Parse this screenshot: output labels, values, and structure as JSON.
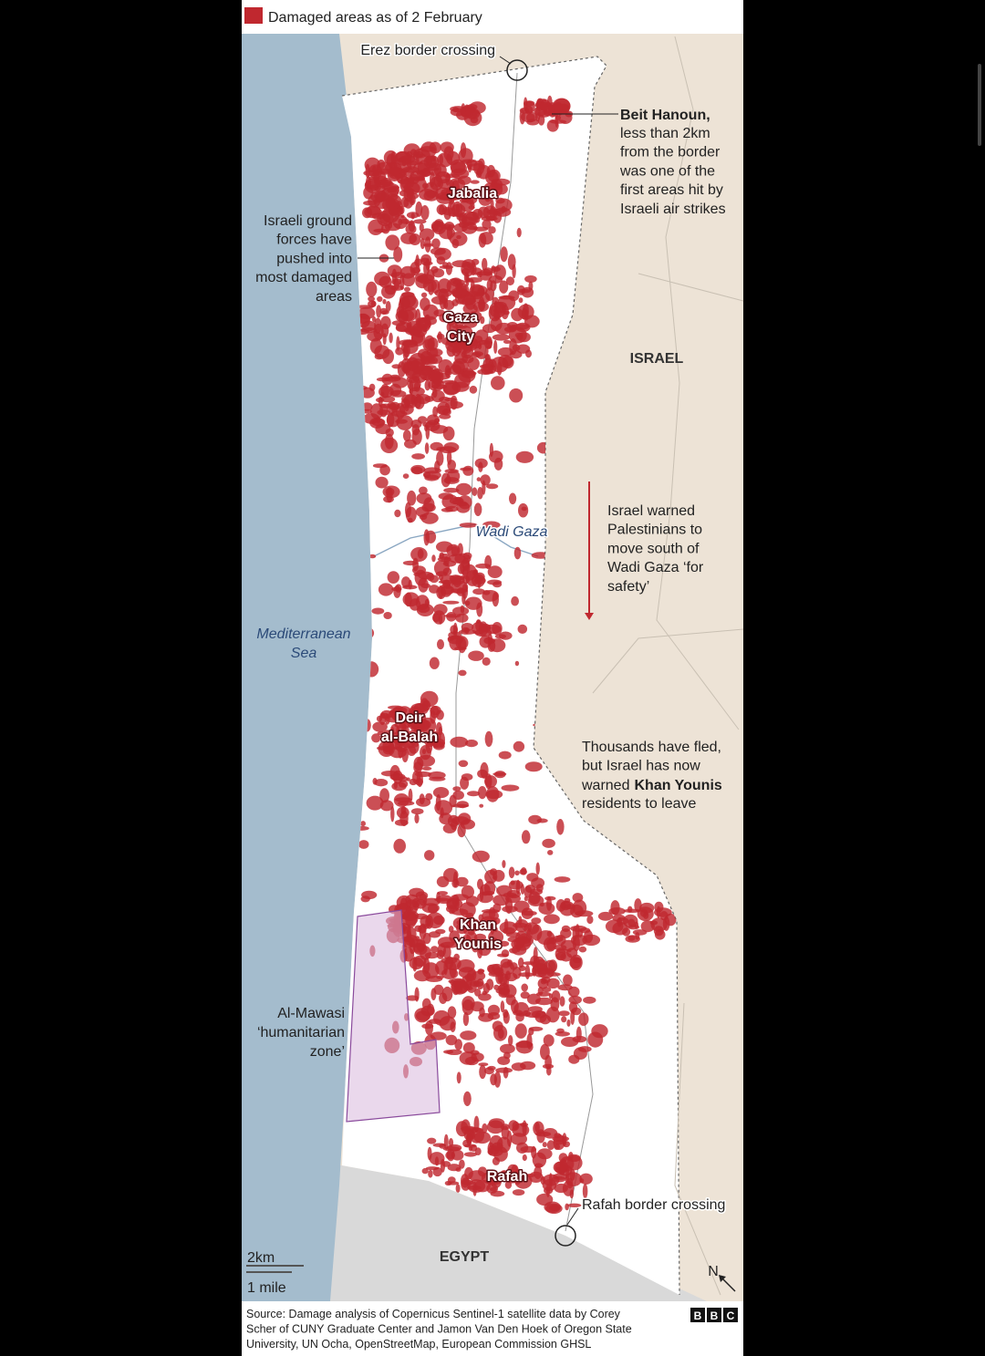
{
  "legend": {
    "text": "Damaged areas as of 2 February"
  },
  "places": {
    "erez": "Erez border crossing",
    "jabalia": "Jabalia",
    "gaza_city": [
      "Gaza",
      "City"
    ],
    "israel": "ISRAEL",
    "wadi_gaza": "Wadi Gaza",
    "sea": [
      "Mediterranean",
      "Sea"
    ],
    "deir": [
      "Deir",
      "al-Balah"
    ],
    "khan_younis": [
      "Khan",
      "Younis"
    ],
    "mawasi": [
      "Al-Mawasi",
      "‘humanitarian",
      "zone’"
    ],
    "rafah": "Rafah",
    "rafah_crossing": "Rafah border crossing",
    "egypt": "EGYPT"
  },
  "notes": {
    "beit_hanoun": {
      "bold": "Beit Hanoun,",
      "lines": [
        "less than 2km",
        "from the border",
        "was one of the",
        "first areas hit by",
        "Israeli air strikes"
      ]
    },
    "ground_forces": [
      "Israeli ground",
      "forces have",
      "pushed into",
      "most damaged",
      "areas"
    ],
    "warning": [
      "Israel warned",
      "Palestinians to",
      "move south of",
      "Wadi Gaza ‘for",
      "safety’"
    ],
    "khan_note": {
      "lines": [
        "Thousands have fled,",
        "but Israel has now"
      ],
      "prefix": "warned",
      "bold": "Khan Younis",
      "last": "residents to leave"
    }
  },
  "scale": {
    "km": "2km",
    "mile": "1 mile"
  },
  "north": "N",
  "footer": {
    "source": [
      "Source: Damage analysis of Copernicus Sentinel-1 satellite data by Corey",
      "Scher of CUNY Graduate Center and Jamon Van Den Hoek of Oregon State",
      "University, UN Ocha, OpenStreetMap, European Commission GHSL"
    ],
    "logo": [
      "B",
      "B",
      "C"
    ]
  }
}
